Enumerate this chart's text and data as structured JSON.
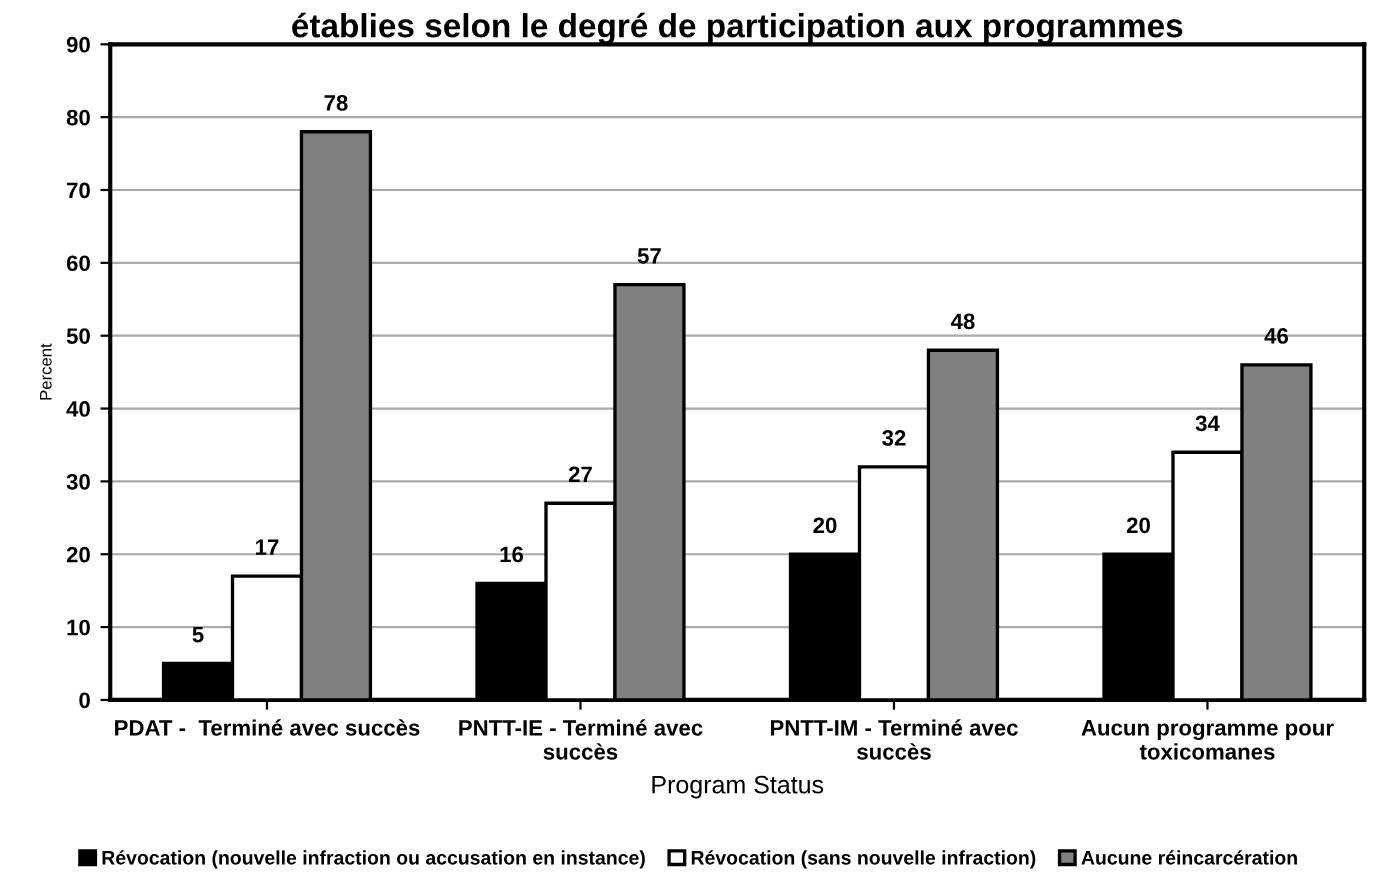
{
  "chart_data": {
    "type": "bar",
    "title": "établies selon le degré de participation aux programmes",
    "xlabel": "Program Status",
    "ylabel": "Percent",
    "categories": [
      "PDAT -  Terminé avec succès",
      "PNTT-IE - Terminé avec\nsuccès",
      "PNTT-IM - Terminé avec\nsuccès",
      "Aucun programme pour\ntoxicomanes"
    ],
    "series": [
      {
        "name": "Révocation (nouvelle infraction ou accusation en instance)",
        "color": "#000000",
        "values": [
          5,
          16,
          20,
          20
        ]
      },
      {
        "name": "Révocation (sans nouvelle infraction)",
        "color": "#ffffff",
        "values": [
          17,
          27,
          32,
          34
        ]
      },
      {
        "name": "Aucune réincarcération",
        "color": "#808080",
        "values": [
          78,
          57,
          48,
          46
        ]
      }
    ],
    "ylim": [
      0,
      90
    ],
    "yticks": [
      0,
      10,
      20,
      30,
      40,
      50,
      60,
      70,
      80,
      90
    ],
    "grid": "y",
    "legend": "bottom",
    "data_labels": true
  }
}
